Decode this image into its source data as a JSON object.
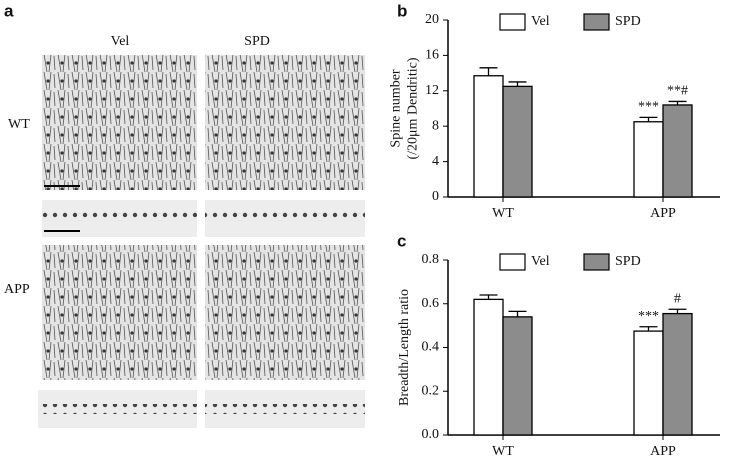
{
  "panel_a": {
    "label": "a",
    "columns": [
      "Vel",
      "SPD"
    ],
    "rows": [
      "WT",
      "APP"
    ]
  },
  "chart_data": [
    {
      "type": "bar",
      "panel_label": "b",
      "y_label": [
        "Spine number",
        "(/20μm Dendritic)"
      ],
      "categories": [
        "WT",
        "APP"
      ],
      "ylim": [
        0,
        20
      ],
      "yticks": [
        0,
        4,
        8,
        12,
        16,
        20
      ],
      "series": [
        {
          "name": "Vel",
          "color": "#ffffff",
          "values": [
            13.7,
            8.5
          ],
          "errors": [
            0.9,
            0.5
          ],
          "annotations": [
            null,
            "***"
          ]
        },
        {
          "name": "SPD",
          "color": "#8c8c8c",
          "values": [
            12.5,
            10.4
          ],
          "errors": [
            0.5,
            0.4
          ],
          "annotations": [
            null,
            "**#"
          ]
        }
      ]
    },
    {
      "type": "bar",
      "panel_label": "c",
      "y_label": [
        "Breadth/Length ratio"
      ],
      "categories": [
        "WT",
        "APP"
      ],
      "ylim": [
        0,
        0.8
      ],
      "yticks": [
        {
          "value": 0,
          "label": "0.0"
        },
        0.2,
        0.4,
        0.6,
        0.8
      ],
      "series": [
        {
          "name": "Vel",
          "color": "#ffffff",
          "values": [
            0.62,
            0.475
          ],
          "errors": [
            0.02,
            0.02
          ],
          "annotations": [
            null,
            "***"
          ]
        },
        {
          "name": "SPD",
          "color": "#8c8c8c",
          "values": [
            0.54,
            0.555
          ],
          "errors": [
            0.025,
            0.02
          ],
          "annotations": [
            null,
            "#"
          ]
        }
      ]
    }
  ]
}
